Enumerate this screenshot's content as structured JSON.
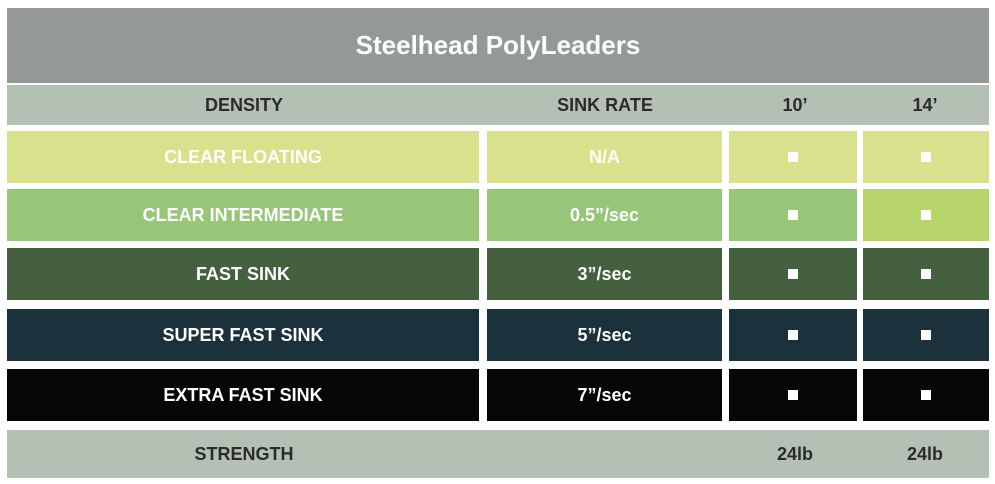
{
  "title": "Steelhead PolyLeaders",
  "header": {
    "density": "DENSITY",
    "sink_rate": "SINK RATE",
    "len10": "10’",
    "len14": "14’"
  },
  "rows": [
    {
      "density": "CLEAR FLOATING",
      "sink_rate": "N/A",
      "has_10": true,
      "has_14": true,
      "color": "#d8e28d",
      "color14": "#d8e28d"
    },
    {
      "density": "CLEAR INTERMEDIATE",
      "sink_rate": "0.5”/sec",
      "has_10": true,
      "has_14": true,
      "color": "#98c679",
      "color14": "#b8d56c"
    },
    {
      "density": "FAST SINK",
      "sink_rate": "3”/sec",
      "has_10": true,
      "has_14": true,
      "color": "#44603f",
      "color14": "#44603f"
    },
    {
      "density": "SUPER FAST SINK",
      "sink_rate": "5”/sec",
      "has_10": true,
      "has_14": true,
      "color": "#1b313b",
      "color14": "#1b313b"
    },
    {
      "density": "EXTRA FAST SINK",
      "sink_rate": "7”/sec",
      "has_10": true,
      "has_14": true,
      "color": "#050607",
      "color14": "#050607"
    }
  ],
  "footer": {
    "label": "STRENGTH",
    "len10": "24lb",
    "len14": "24lb"
  }
}
